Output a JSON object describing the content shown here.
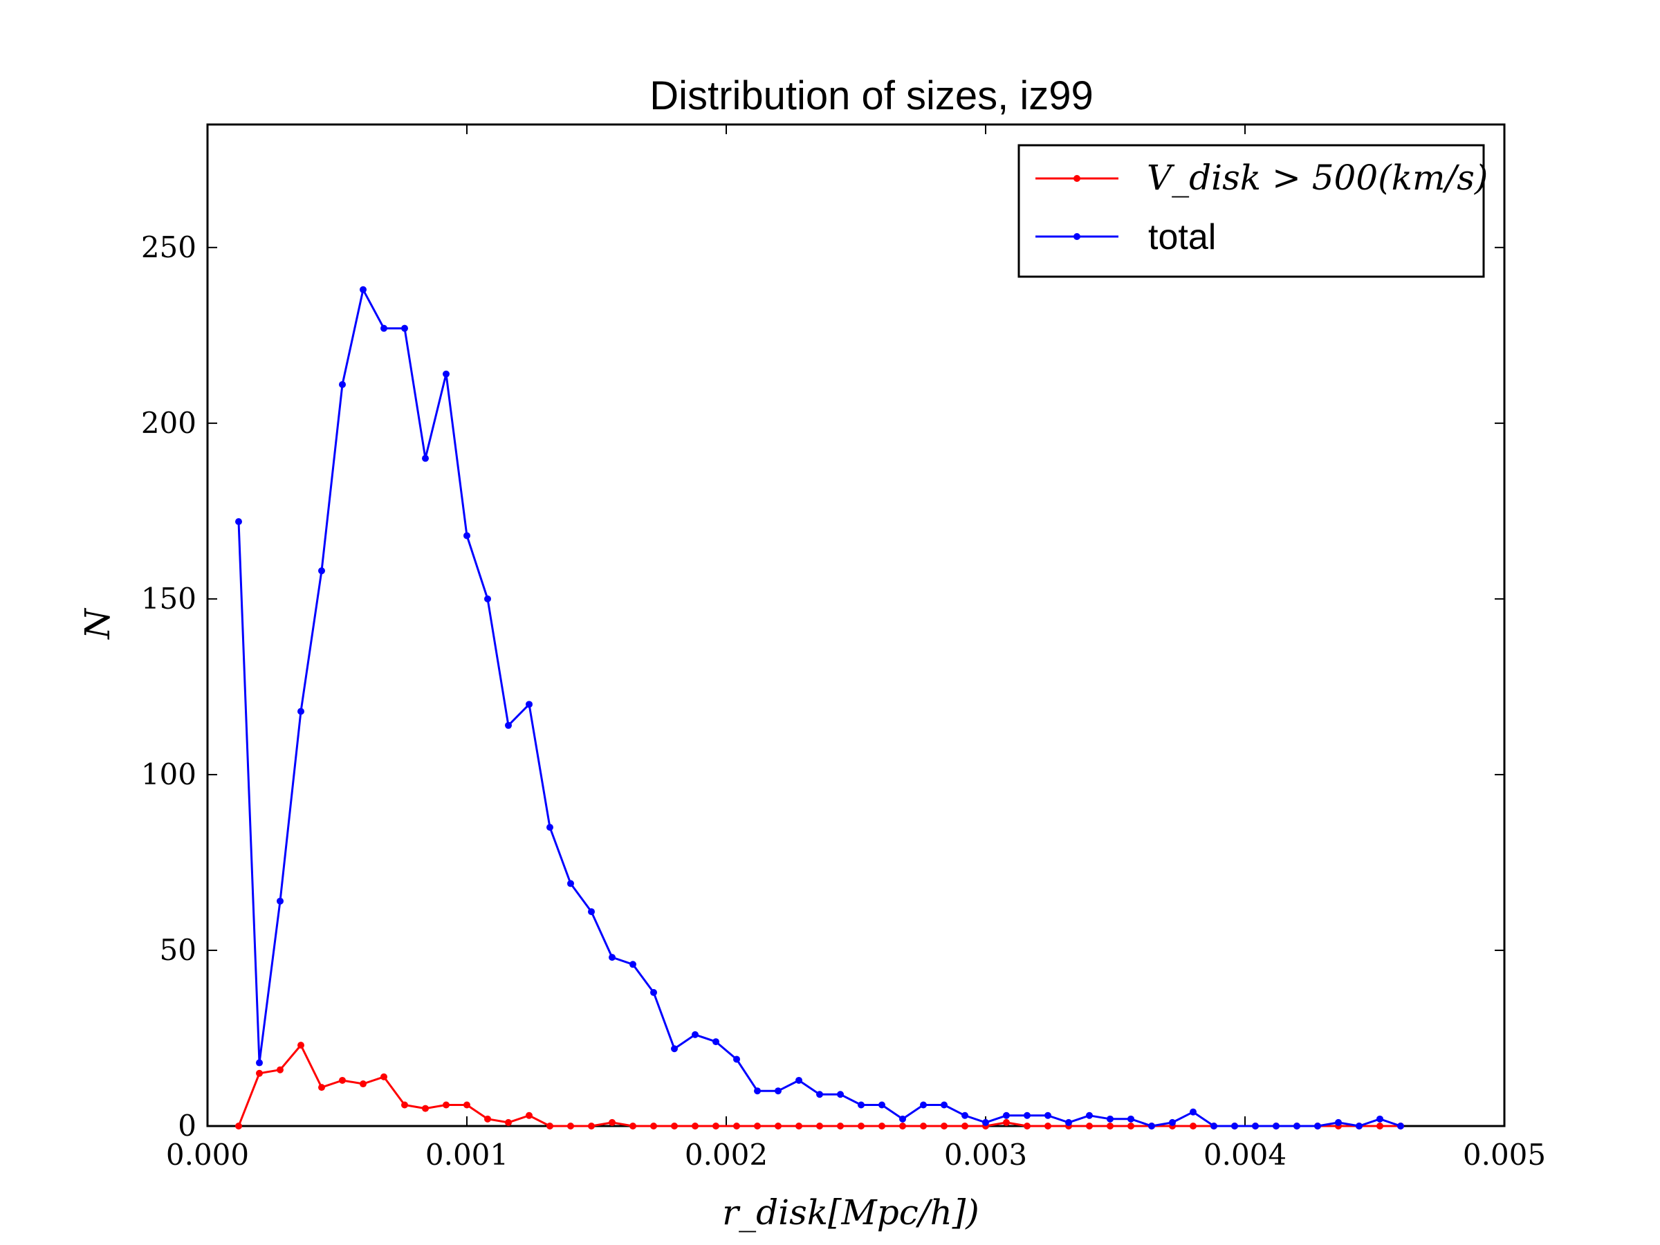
{
  "chart_data": {
    "type": "line",
    "title": "Distribution of sizes, iz99",
    "xlabel": "r_disk[Mpc/h])",
    "ylabel": "N",
    "xlim": [
      0.0,
      0.005
    ],
    "ylim": [
      0,
      285
    ],
    "xticks": [
      0.0,
      0.001,
      0.002,
      0.003,
      0.004,
      0.005
    ],
    "xtick_labels": [
      "0.000",
      "0.001",
      "0.002",
      "0.003",
      "0.004",
      "0.005"
    ],
    "yticks": [
      0,
      50,
      100,
      150,
      200,
      250
    ],
    "ytick_labels": [
      "0",
      "50",
      "100",
      "150",
      "200",
      "250"
    ],
    "legend_position": "top-right",
    "series": [
      {
        "name": "V_disk > 500(km/s)",
        "color": "#ff0000",
        "x": [
          0.00012,
          0.0002,
          0.00028,
          0.00036,
          0.00044,
          0.00052,
          0.0006,
          0.00068,
          0.00076,
          0.00084,
          0.00092,
          0.001,
          0.00108,
          0.00116,
          0.00124,
          0.00132,
          0.0014,
          0.00148,
          0.00156,
          0.00164,
          0.00172,
          0.0018,
          0.00188,
          0.00196,
          0.00204,
          0.00212,
          0.0022,
          0.00228,
          0.00236,
          0.00244,
          0.00252,
          0.0026,
          0.00268,
          0.00276,
          0.00284,
          0.00292,
          0.003,
          0.00308,
          0.00316,
          0.00324,
          0.00332,
          0.0034,
          0.00348,
          0.00356,
          0.00364,
          0.00372,
          0.0038,
          0.00388,
          0.00396,
          0.00404,
          0.00412,
          0.0042,
          0.00428,
          0.00436,
          0.00444,
          0.00452,
          0.0046
        ],
        "y": [
          0,
          15,
          16,
          23,
          11,
          13,
          12,
          14,
          6,
          5,
          6,
          6,
          2,
          1,
          3,
          0,
          0,
          0,
          1,
          0,
          0,
          0,
          0,
          0,
          0,
          0,
          0,
          0,
          0,
          0,
          0,
          0,
          0,
          0,
          0,
          0,
          0,
          1,
          0,
          0,
          0,
          0,
          0,
          0,
          0,
          0,
          0,
          0,
          0,
          0,
          0,
          0,
          0,
          0,
          0,
          0,
          0
        ]
      },
      {
        "name": "total",
        "color": "#0000ff",
        "x": [
          0.00012,
          0.0002,
          0.00028,
          0.00036,
          0.00044,
          0.00052,
          0.0006,
          0.00068,
          0.00076,
          0.00084,
          0.00092,
          0.001,
          0.00108,
          0.00116,
          0.00124,
          0.00132,
          0.0014,
          0.00148,
          0.00156,
          0.00164,
          0.00172,
          0.0018,
          0.00188,
          0.00196,
          0.00204,
          0.00212,
          0.0022,
          0.00228,
          0.00236,
          0.00244,
          0.00252,
          0.0026,
          0.00268,
          0.00276,
          0.00284,
          0.00292,
          0.003,
          0.00308,
          0.00316,
          0.00324,
          0.00332,
          0.0034,
          0.00348,
          0.00356,
          0.00364,
          0.00372,
          0.0038,
          0.00388,
          0.00396,
          0.00404,
          0.00412,
          0.0042,
          0.00428,
          0.00436,
          0.00444,
          0.00452,
          0.0046
        ],
        "y": [
          172,
          18,
          64,
          118,
          158,
          211,
          238,
          227,
          227,
          190,
          214,
          168,
          150,
          114,
          120,
          85,
          69,
          61,
          48,
          46,
          38,
          22,
          26,
          24,
          19,
          10,
          10,
          13,
          9,
          9,
          6,
          6,
          2,
          6,
          6,
          3,
          1,
          3,
          3,
          3,
          1,
          3,
          2,
          2,
          0,
          1,
          4,
          0,
          0,
          0,
          0,
          0,
          0,
          1,
          0,
          2,
          0
        ]
      }
    ]
  }
}
